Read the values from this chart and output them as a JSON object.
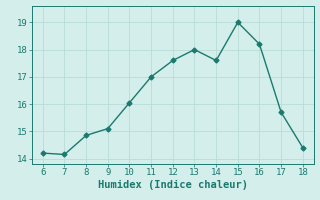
{
  "x": [
    6,
    7,
    8,
    9,
    10,
    11,
    12,
    13,
    14,
    15,
    16,
    17,
    18
  ],
  "y": [
    14.2,
    14.15,
    14.85,
    15.1,
    16.05,
    17.0,
    17.6,
    18.0,
    17.6,
    19.0,
    18.2,
    15.7,
    14.4
  ],
  "line_color": "#1a7a6e",
  "marker": "D",
  "marker_size": 2.5,
  "line_width": 1.0,
  "xlabel": "Humidex (Indice chaleur)",
  "xlabel_fontsize": 7.5,
  "background_color": "#d4eeeb",
  "grid_color": "#b8ddd9",
  "xlim": [
    5.5,
    18.5
  ],
  "ylim": [
    13.8,
    19.6
  ],
  "xticks": [
    6,
    7,
    8,
    9,
    10,
    11,
    12,
    13,
    14,
    15,
    16,
    17,
    18
  ],
  "yticks": [
    14,
    15,
    16,
    17,
    18,
    19
  ],
  "tick_fontsize": 6.5,
  "fig_bg_color": "#d4eeeb"
}
